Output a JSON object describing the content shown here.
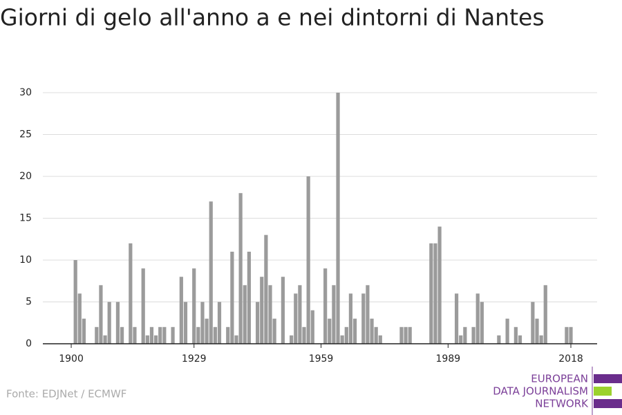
{
  "chart_data": {
    "type": "bar",
    "title": "Giorni di gelo all'anno a e nei dintorni di Nantes",
    "source": "Fonte: EDJNet / ECMWF",
    "logo": [
      "EUROPEAN",
      "DATA JOURNALISM",
      "NETWORK"
    ],
    "color": "#9b9b9b",
    "grid": true,
    "x": [
      1901,
      1902,
      1903,
      1906,
      1907,
      1908,
      1909,
      1911,
      1912,
      1914,
      1915,
      1917,
      1918,
      1919,
      1920,
      1921,
      1922,
      1924,
      1926,
      1927,
      1929,
      1930,
      1931,
      1932,
      1933,
      1934,
      1935,
      1937,
      1938,
      1939,
      1940,
      1941,
      1942,
      1944,
      1945,
      1946,
      1947,
      1948,
      1950,
      1952,
      1953,
      1954,
      1955,
      1956,
      1957,
      1960,
      1961,
      1962,
      1963,
      1964,
      1965,
      1966,
      1967,
      1969,
      1970,
      1971,
      1972,
      1973,
      1978,
      1979,
      1980,
      1985,
      1986,
      1987,
      1991,
      1992,
      1993,
      1995,
      1996,
      1997,
      2001,
      2003,
      2005,
      2006,
      2009,
      2010,
      2011,
      2012,
      2017,
      2018
    ],
    "values": [
      10,
      6,
      3,
      2,
      7,
      1,
      5,
      5,
      2,
      12,
      2,
      9,
      1,
      2,
      1,
      2,
      2,
      2,
      8,
      5,
      9,
      2,
      5,
      3,
      17,
      2,
      5,
      2,
      11,
      1,
      18,
      7,
      11,
      5,
      8,
      13,
      7,
      3,
      8,
      1,
      6,
      7,
      2,
      20,
      4,
      9,
      3,
      7,
      30,
      1,
      2,
      6,
      3,
      6,
      7,
      3,
      2,
      1,
      2,
      2,
      2,
      12,
      12,
      14,
      6,
      1,
      2,
      2,
      6,
      5,
      1,
      3,
      2,
      1,
      5,
      3,
      1,
      7,
      2,
      2
    ],
    "xlim": [
      1893.3,
      2024.2
    ],
    "xticks": [
      1900,
      1929,
      1959,
      1989,
      2018
    ],
    "ylim": [
      0,
      30
    ],
    "yticks": [
      0,
      5,
      10,
      15,
      20,
      25,
      30
    ]
  }
}
